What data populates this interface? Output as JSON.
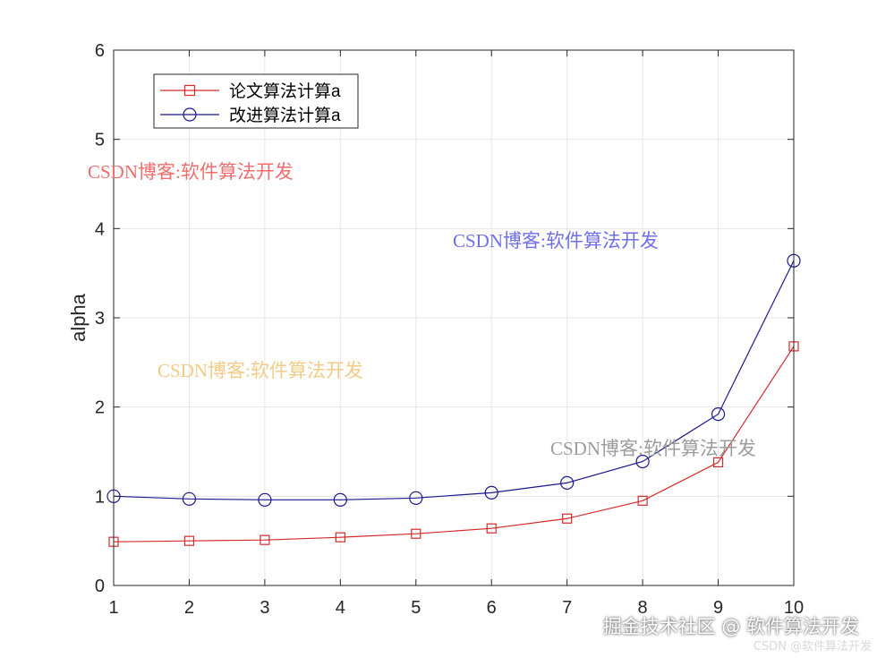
{
  "chart_data": {
    "type": "line",
    "title": "",
    "xlabel": "",
    "ylabel": "alpha",
    "x": [
      1,
      2,
      3,
      4,
      5,
      6,
      7,
      8,
      9,
      10
    ],
    "xlim": [
      1,
      10
    ],
    "ylim": [
      0,
      6
    ],
    "xticks": [
      "1",
      "2",
      "3",
      "4",
      "5",
      "6",
      "7",
      "8",
      "9",
      "10"
    ],
    "yticks": [
      "0",
      "1",
      "2",
      "3",
      "4",
      "5",
      "6"
    ],
    "grid": true,
    "legend_position": "top-left",
    "series": [
      {
        "name": "论文算法计算a",
        "color": "#d42a2a",
        "marker": "square",
        "values": [
          0.49,
          0.5,
          0.51,
          0.54,
          0.58,
          0.64,
          0.75,
          0.95,
          1.38,
          2.68
        ]
      },
      {
        "name": "改进算法计算a",
        "color": "#1a1a8c",
        "marker": "circle",
        "values": [
          1.0,
          0.97,
          0.96,
          0.96,
          0.98,
          1.04,
          1.15,
          1.39,
          1.92,
          3.64
        ]
      }
    ]
  },
  "watermarks": [
    {
      "text": "CSDN博客:软件算法开发",
      "color": "#f26d6d"
    },
    {
      "text": "CSDN博客:软件算法开发",
      "color": "#6f6fe8"
    },
    {
      "text": "CSDN博客:软件算法开发",
      "color": "#f3cb86"
    },
    {
      "text": "CSDN博客:软件算法开发",
      "color": "#9c9c9c"
    }
  ],
  "footer": {
    "main": "掘金技术社区 @ 软件算法开发",
    "small": "CSDN @软件算法开发"
  }
}
